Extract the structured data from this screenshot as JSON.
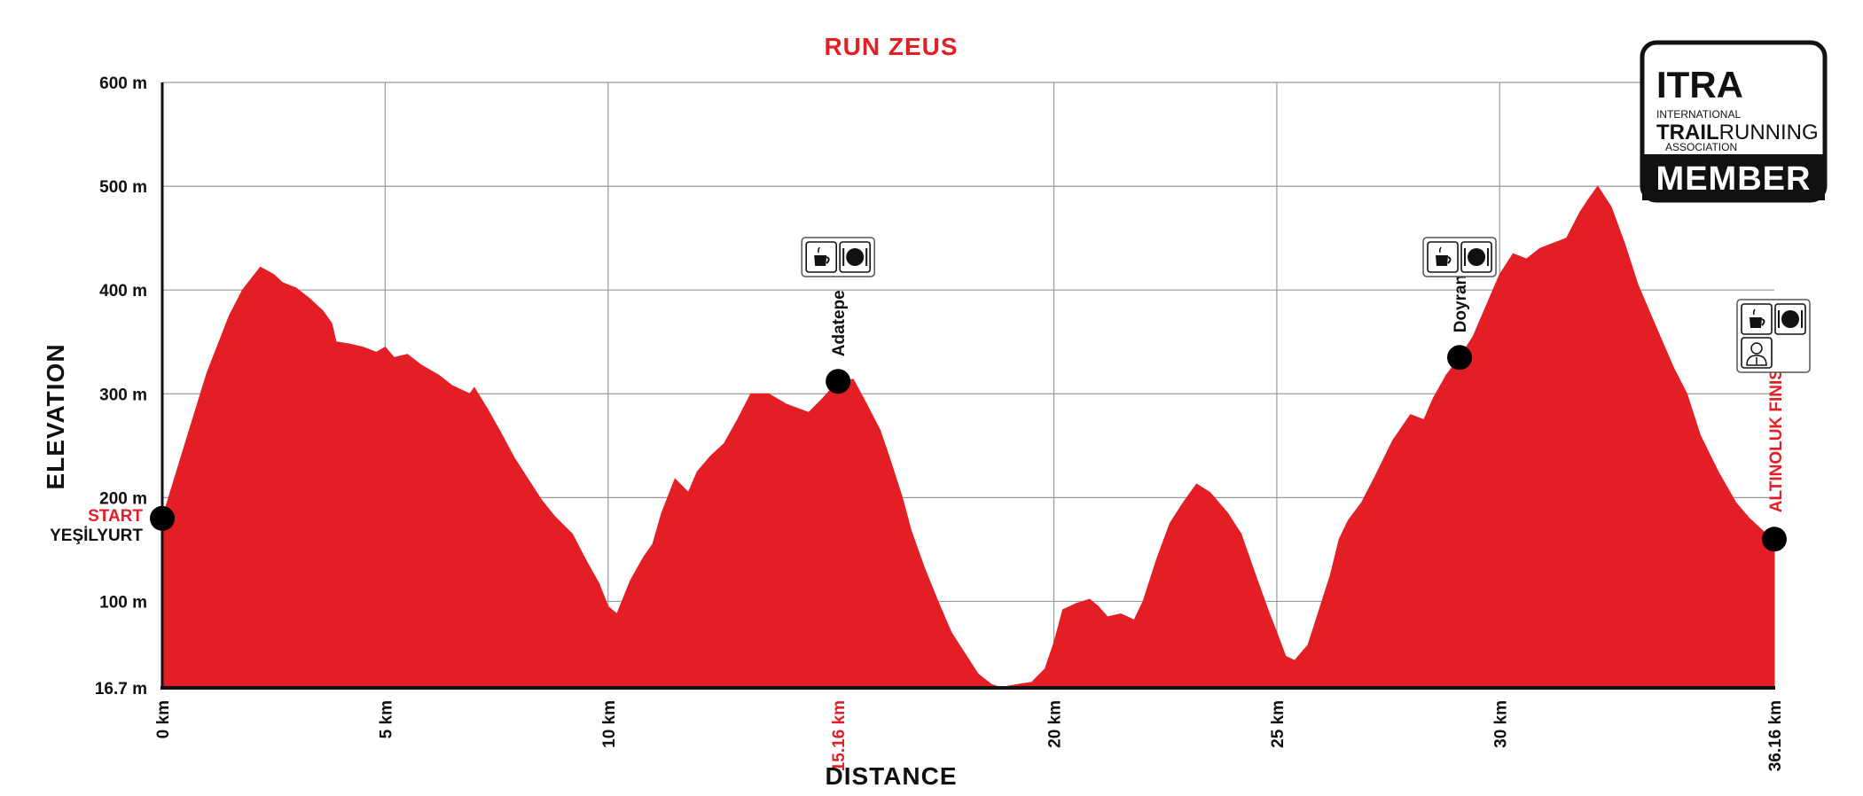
{
  "chart_data": {
    "type": "area",
    "title": "RUN ZEUS",
    "xlabel": "DISTANCE",
    "ylabel": "ELEVATION",
    "xlim": [
      0,
      36.16
    ],
    "ylim": [
      16.7,
      600
    ],
    "grid": true,
    "fill_color": "#e31e24",
    "accent_color": "#e31e24",
    "y_ticks": [
      {
        "value": 16.7,
        "label": "16.7 m"
      },
      {
        "value": 100,
        "label": "100 m"
      },
      {
        "value": 200,
        "label": "200 m"
      },
      {
        "value": 300,
        "label": "300 m"
      },
      {
        "value": 400,
        "label": "400 m"
      },
      {
        "value": 500,
        "label": "500 m"
      },
      {
        "value": 600,
        "label": "600 m"
      }
    ],
    "x_ticks": [
      {
        "value": 0,
        "label": "0 km",
        "highlight": false
      },
      {
        "value": 5,
        "label": "5 km",
        "highlight": false
      },
      {
        "value": 10,
        "label": "10 km",
        "highlight": false
      },
      {
        "value": 15.16,
        "label": "15.16 km",
        "highlight": true
      },
      {
        "value": 20,
        "label": "20 km",
        "highlight": false
      },
      {
        "value": 25,
        "label": "25 km",
        "highlight": false
      },
      {
        "value": 30,
        "label": "30 km",
        "highlight": false
      },
      {
        "value": 36.16,
        "label": "36.16 km",
        "highlight": false
      }
    ],
    "profile": [
      [
        0,
        180
      ],
      [
        0.5,
        250
      ],
      [
        1.0,
        320
      ],
      [
        1.5,
        375
      ],
      [
        1.8,
        400
      ],
      [
        2.2,
        422
      ],
      [
        2.5,
        415
      ],
      [
        2.7,
        407
      ],
      [
        3.0,
        402
      ],
      [
        3.3,
        392
      ],
      [
        3.6,
        380
      ],
      [
        3.8,
        368
      ],
      [
        3.9,
        350
      ],
      [
        4.2,
        348
      ],
      [
        4.5,
        345
      ],
      [
        4.8,
        340
      ],
      [
        5.0,
        345
      ],
      [
        5.2,
        335
      ],
      [
        5.5,
        338
      ],
      [
        5.8,
        328
      ],
      [
        6.2,
        318
      ],
      [
        6.5,
        308
      ],
      [
        6.9,
        300
      ],
      [
        7.0,
        306
      ],
      [
        7.3,
        285
      ],
      [
        7.6,
        262
      ],
      [
        7.9,
        238
      ],
      [
        8.2,
        218
      ],
      [
        8.5,
        198
      ],
      [
        8.8,
        182
      ],
      [
        9.2,
        165
      ],
      [
        9.5,
        140
      ],
      [
        9.8,
        117
      ],
      [
        10.0,
        95
      ],
      [
        10.2,
        88
      ],
      [
        10.5,
        120
      ],
      [
        10.8,
        143
      ],
      [
        11.0,
        155
      ],
      [
        11.2,
        185
      ],
      [
        11.5,
        218
      ],
      [
        11.8,
        205
      ],
      [
        12.0,
        225
      ],
      [
        12.3,
        240
      ],
      [
        12.6,
        252
      ],
      [
        12.9,
        275
      ],
      [
        13.2,
        300
      ],
      [
        13.6,
        300
      ],
      [
        14.0,
        290
      ],
      [
        14.5,
        282
      ],
      [
        14.8,
        295
      ],
      [
        15.16,
        312
      ],
      [
        15.5,
        314
      ],
      [
        15.8,
        290
      ],
      [
        16.1,
        265
      ],
      [
        16.3,
        240
      ],
      [
        16.6,
        200
      ],
      [
        16.8,
        168
      ],
      [
        17.1,
        132
      ],
      [
        17.4,
        100
      ],
      [
        17.7,
        70
      ],
      [
        18.0,
        50
      ],
      [
        18.3,
        30
      ],
      [
        18.6,
        20
      ],
      [
        18.8,
        17
      ],
      [
        19.2,
        20
      ],
      [
        19.5,
        22
      ],
      [
        19.8,
        35
      ],
      [
        20.0,
        60
      ],
      [
        20.2,
        92
      ],
      [
        20.5,
        98
      ],
      [
        20.8,
        102
      ],
      [
        21.0,
        95
      ],
      [
        21.2,
        85
      ],
      [
        21.5,
        88
      ],
      [
        21.8,
        82
      ],
      [
        22.0,
        100
      ],
      [
        22.3,
        140
      ],
      [
        22.6,
        175
      ],
      [
        22.9,
        195
      ],
      [
        23.2,
        213
      ],
      [
        23.5,
        205
      ],
      [
        23.9,
        185
      ],
      [
        24.2,
        165
      ],
      [
        24.5,
        128
      ],
      [
        24.8,
        92
      ],
      [
        25.0,
        70
      ],
      [
        25.2,
        47
      ],
      [
        25.4,
        43
      ],
      [
        25.7,
        58
      ],
      [
        25.9,
        85
      ],
      [
        26.2,
        125
      ],
      [
        26.4,
        160
      ],
      [
        26.6,
        178
      ],
      [
        26.9,
        195
      ],
      [
        27.2,
        220
      ],
      [
        27.6,
        255
      ],
      [
        28.0,
        280
      ],
      [
        28.3,
        275
      ],
      [
        28.5,
        295
      ],
      [
        28.8,
        318
      ],
      [
        29.1,
        335
      ],
      [
        29.4,
        355
      ],
      [
        29.7,
        385
      ],
      [
        30.0,
        415
      ],
      [
        30.3,
        435
      ],
      [
        30.6,
        430
      ],
      [
        30.9,
        440
      ],
      [
        31.2,
        445
      ],
      [
        31.5,
        450
      ],
      [
        31.8,
        475
      ],
      [
        32.0,
        488
      ],
      [
        32.2,
        500
      ],
      [
        32.5,
        480
      ],
      [
        32.8,
        445
      ],
      [
        33.1,
        405
      ],
      [
        33.3,
        385
      ],
      [
        33.6,
        355
      ],
      [
        33.9,
        325
      ],
      [
        34.2,
        300
      ],
      [
        34.5,
        260
      ],
      [
        34.9,
        225
      ],
      [
        35.3,
        195
      ],
      [
        35.6,
        180
      ],
      [
        35.9,
        168
      ],
      [
        36.16,
        160
      ]
    ],
    "waypoints": [
      {
        "name": "Adatepe",
        "km": 15.16,
        "elev": 312,
        "services": [
          "coffee-icon",
          "meal-icon"
        ]
      },
      {
        "name": "Doyran",
        "km": 29.1,
        "elev": 335,
        "services": [
          "coffee-icon",
          "meal-icon"
        ]
      }
    ],
    "start": {
      "label": "START",
      "place": "YEŞİLYURT",
      "km": 0,
      "elev": 180
    },
    "finish": {
      "label": "ALTINOLUK FINISH",
      "km": 36.16,
      "elev": 160,
      "services": [
        "coffee-icon",
        "meal-icon",
        "medic-icon"
      ]
    }
  },
  "logo": {
    "mark": "ITRA",
    "line1": "INTERNATIONAL",
    "line2_a": "TRAIL",
    "line2_b": "RUNNING",
    "line3": "ASSOCIATION",
    "badge": "MEMBER"
  }
}
